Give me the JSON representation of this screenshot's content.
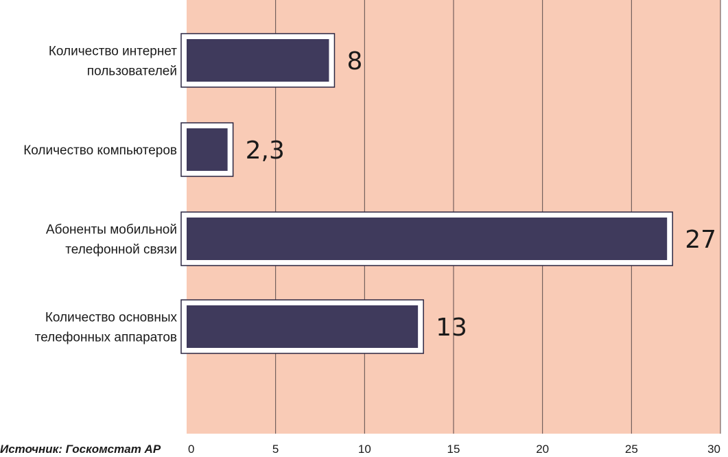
{
  "chart_data": {
    "type": "bar",
    "orientation": "horizontal",
    "categories": [
      [
        "Количество интернет",
        "пользователей"
      ],
      [
        "Количество компьютеров"
      ],
      [
        "Абоненты мобильной",
        "телефонной связи"
      ],
      [
        "Количество основных",
        "телефонных аппаратов"
      ]
    ],
    "values": [
      8,
      2.3,
      27,
      13
    ],
    "value_labels": [
      "8",
      "2,3",
      "27",
      "13"
    ],
    "xlim": [
      0,
      30
    ],
    "xticks": [
      0,
      5,
      10,
      15,
      20,
      25,
      30
    ],
    "xtick_labels": [
      "0",
      "5",
      "10",
      "15",
      "20",
      "25",
      "30"
    ],
    "grid": "vertical",
    "source": "Источник: Госкомстат АР",
    "colors": {
      "background": "#f9cbb6",
      "bar_fill": "#3f3a5c",
      "bar_outline": "#ffffff",
      "grid": "#5a4a4a"
    }
  }
}
